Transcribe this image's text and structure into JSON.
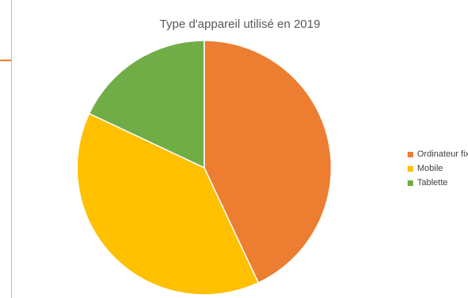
{
  "chart_data": {
    "type": "pie",
    "title": "Type d'appareil utilisé en 2019",
    "categories": [
      "Ordinateur fixe",
      "Mobile",
      "Tablette"
    ],
    "values": [
      43,
      39,
      18
    ],
    "colors": [
      "#ED7D31",
      "#FFC000",
      "#70AD47"
    ],
    "legend": "right"
  },
  "accent_color": "#ED7D31"
}
